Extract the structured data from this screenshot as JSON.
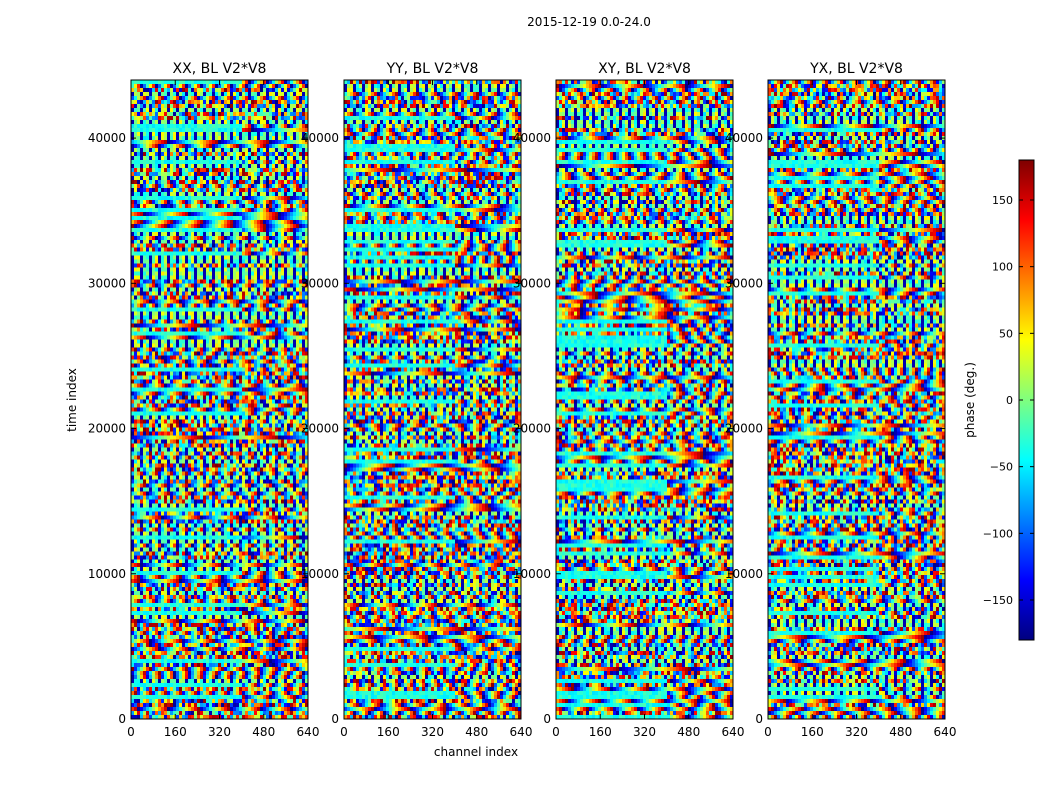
{
  "chart_data": {
    "type": "heatmap",
    "title": "2015-12-19 0.0-24.0",
    "xlabel": "channel index",
    "ylabel": "time index",
    "xlim": [
      0,
      640
    ],
    "ylim": [
      0,
      44000
    ],
    "x_ticks": [
      0,
      160,
      320,
      480,
      640
    ],
    "y_ticks": [
      0,
      10000,
      20000,
      30000,
      40000
    ],
    "panels": [
      {
        "name": "XX, BL V2*V8"
      },
      {
        "name": "YY, BL V2*V8"
      },
      {
        "name": "XY, BL V2*V8"
      },
      {
        "name": "YX, BL V2*V8"
      }
    ],
    "colorbar": {
      "label": "phase (deg.)",
      "range": [
        -180,
        180
      ],
      "ticks": [
        -150,
        -100,
        -50,
        0,
        50,
        100,
        150
      ],
      "colormap": "jet"
    }
  },
  "colors": {
    "jet": [
      "#00007f",
      "#0000ff",
      "#007fff",
      "#00ffff",
      "#7fff7f",
      "#ffff00",
      "#ff7f00",
      "#ff0000",
      "#7f0000"
    ]
  }
}
